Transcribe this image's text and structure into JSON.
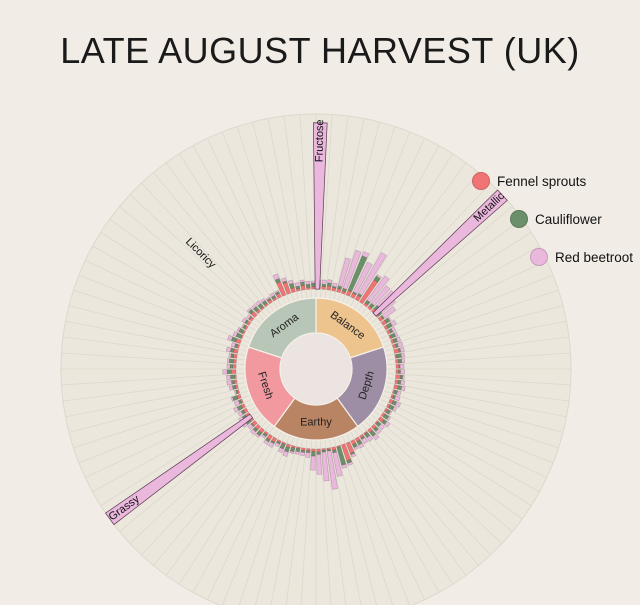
{
  "chart_data": {
    "type": "radial-bar",
    "title": "LATE AUGUST HARVEST (UK)",
    "series": [
      {
        "name": "Fennel sprouts",
        "color": "#f07474"
      },
      {
        "name": "Cauliflower",
        "color": "#6a8f6a"
      },
      {
        "name": "Red beetroot",
        "color": "#eab7dd"
      }
    ],
    "categories": [
      {
        "name": "Balance",
        "color": "#eec48e"
      },
      {
        "name": "Depth",
        "color": "#9d8ea6"
      },
      {
        "name": "Earthy",
        "color": "#b98464"
      },
      {
        "name": "Fresh",
        "color": "#f1999e"
      },
      {
        "name": "Aroma",
        "color": "#b7c6b6"
      }
    ],
    "highlights": [
      {
        "label": "Fructose",
        "value": 95
      },
      {
        "label": "Metallic",
        "value": 100
      },
      {
        "label": "Licoricy",
        "value": 58
      },
      {
        "label": "Grassy",
        "value": 100
      }
    ],
    "rmax": 100,
    "grid": true
  }
}
